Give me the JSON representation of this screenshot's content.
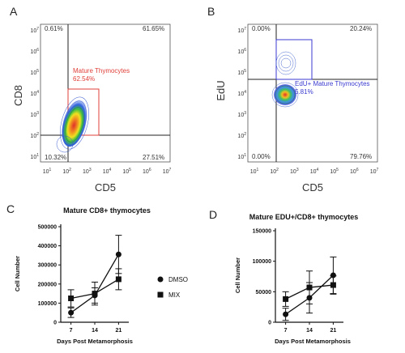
{
  "panel_letters": [
    "A",
    "B",
    "C",
    "D"
  ],
  "flow_plots": [
    {
      "y_label": "CD8",
      "x_label": "CD5",
      "quadrants": {
        "top_left": "0.61%",
        "top_right": "61.65%",
        "bottom_left": "10.32%",
        "bottom_right": "27.51%"
      },
      "gate_label": "Mature Thymocytes",
      "gate_value": "62.54%"
    },
    {
      "y_label": "EdU",
      "x_label": "CD5",
      "quadrants": {
        "top_left": "0.00%",
        "top_right": "20.24%",
        "bottom_left": "0.00%",
        "bottom_right": "79.76%"
      },
      "gate_label": "EdU+ Mature Thymocytes",
      "gate_value": "5.81%"
    }
  ],
  "flow_axis_ticks": {
    "base": "10",
    "exponents": [
      "1",
      "2",
      "3",
      "4",
      "5",
      "6",
      "7"
    ]
  },
  "legend": {
    "entries": [
      {
        "name": "DMSO",
        "marker": "circle"
      },
      {
        "name": "MIX",
        "marker": "square"
      }
    ]
  },
  "colors": {
    "gate_red": "#e0403a",
    "gate_blue": "#3a3ad0",
    "line": "#111111"
  },
  "chart_data": [
    {
      "type": "line",
      "title": "Mature CD8+ thymocytes",
      "xlabel": "Days Post Metamorphosis",
      "ylabel": "Cell Number",
      "x": [
        7,
        14,
        21
      ],
      "x_tick_labels": [
        "7",
        "14",
        "21"
      ],
      "ylim": [
        0,
        500000
      ],
      "y_ticks": [
        0,
        100000,
        200000,
        300000,
        400000,
        500000
      ],
      "y_tick_labels": [
        "0",
        "100000",
        "200000",
        "300000",
        "400000",
        "500000"
      ],
      "series": [
        {
          "name": "DMSO",
          "marker": "circle",
          "values": [
            50000,
            140000,
            355000
          ],
          "error": [
            25000,
            40000,
            100000
          ]
        },
        {
          "name": "MIX",
          "marker": "square",
          "values": [
            125000,
            150000,
            225000
          ],
          "error": [
            45000,
            60000,
            55000
          ]
        }
      ]
    },
    {
      "type": "line",
      "title": "Mature EDU+/CD8+ thymocytes",
      "xlabel": "Days Post Metamorphosis",
      "ylabel": "Cell Number",
      "x": [
        7,
        14,
        21
      ],
      "x_tick_labels": [
        "7",
        "14",
        "21"
      ],
      "ylim": [
        0,
        150000
      ],
      "y_ticks": [
        0,
        50000,
        100000,
        150000
      ],
      "y_tick_labels": [
        "0",
        "50000",
        "100000",
        "150000"
      ],
      "series": [
        {
          "name": "DMSO",
          "marker": "circle",
          "values": [
            13000,
            40000,
            77000
          ],
          "error": [
            10000,
            25000,
            30000
          ]
        },
        {
          "name": "MIX",
          "marker": "square",
          "values": [
            38000,
            57000,
            61000
          ],
          "error": [
            12000,
            27000,
            15000
          ]
        }
      ]
    }
  ]
}
